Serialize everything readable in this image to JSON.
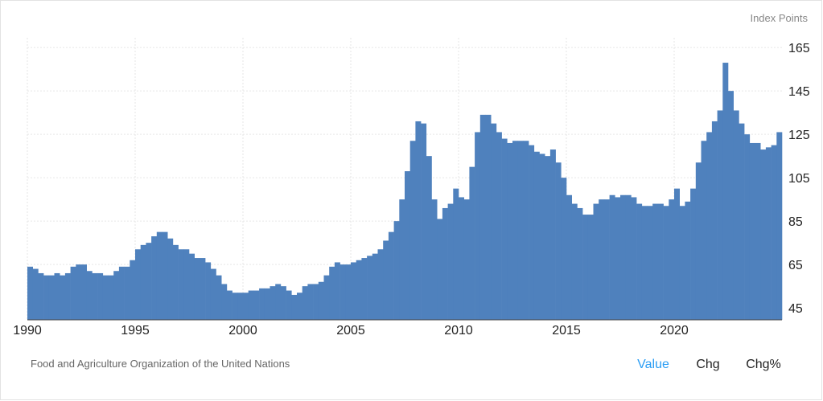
{
  "chart_data": {
    "type": "bar",
    "unit_label": "Index Points",
    "source": "Food and Agriculture Organization of the United Nations",
    "tabs": [
      "Value",
      "Chg",
      "Chg%"
    ],
    "color": "#4f81bd",
    "x": [
      1990,
      1990.25,
      1990.5,
      1990.75,
      1991,
      1991.25,
      1991.5,
      1991.75,
      1992,
      1992.25,
      1992.5,
      1992.75,
      1993,
      1993.25,
      1993.5,
      1993.75,
      1994,
      1994.25,
      1994.5,
      1994.75,
      1995,
      1995.25,
      1995.5,
      1995.75,
      1996,
      1996.25,
      1996.5,
      1996.75,
      1997,
      1997.25,
      1997.5,
      1997.75,
      1998,
      1998.25,
      1998.5,
      1998.75,
      1999,
      1999.25,
      1999.5,
      1999.75,
      2000,
      2000.25,
      2000.5,
      2000.75,
      2001,
      2001.25,
      2001.5,
      2001.75,
      2002,
      2002.25,
      2002.5,
      2002.75,
      2003,
      2003.25,
      2003.5,
      2003.75,
      2004,
      2004.25,
      2004.5,
      2004.75,
      2005,
      2005.25,
      2005.5,
      2005.75,
      2006,
      2006.25,
      2006.5,
      2006.75,
      2007,
      2007.25,
      2007.5,
      2007.75,
      2008,
      2008.25,
      2008.5,
      2008.75,
      2009,
      2009.25,
      2009.5,
      2009.75,
      2010,
      2010.25,
      2010.5,
      2010.75,
      2011,
      2011.25,
      2011.5,
      2011.75,
      2012,
      2012.25,
      2012.5,
      2012.75,
      2013,
      2013.25,
      2013.5,
      2013.75,
      2014,
      2014.25,
      2014.5,
      2014.75,
      2015,
      2015.25,
      2015.5,
      2015.75,
      2016,
      2016.25,
      2016.5,
      2016.75,
      2017,
      2017.25,
      2017.5,
      2017.75,
      2018,
      2018.25,
      2018.5,
      2018.75,
      2019,
      2019.25,
      2019.5,
      2019.75,
      2020,
      2020.25,
      2020.5,
      2020.75,
      2021,
      2021.25,
      2021.5,
      2021.75,
      2022,
      2022.25,
      2022.5,
      2022.75,
      2023,
      2023.25,
      2023.5,
      2023.75,
      2024,
      2024.25,
      2024.5,
      2024.75
    ],
    "values": [
      64,
      63,
      61,
      60,
      60,
      61,
      60,
      61,
      64,
      65,
      65,
      62,
      61,
      61,
      60,
      60,
      62,
      64,
      64,
      67,
      72,
      74,
      75,
      78,
      80,
      80,
      77,
      74,
      72,
      72,
      70,
      68,
      68,
      66,
      63,
      60,
      56,
      53,
      52,
      52,
      52,
      53,
      53,
      54,
      54,
      55,
      56,
      55,
      53,
      51,
      52,
      55,
      56,
      56,
      57,
      60,
      64,
      66,
      65,
      65,
      66,
      67,
      68,
      69,
      70,
      72,
      76,
      80,
      85,
      95,
      108,
      122,
      131,
      130,
      115,
      95,
      86,
      91,
      93,
      100,
      96,
      95,
      110,
      126,
      134,
      134,
      130,
      126,
      123,
      121,
      122,
      122,
      122,
      120,
      117,
      116,
      115,
      118,
      112,
      105,
      97,
      93,
      91,
      88,
      88,
      93,
      95,
      95,
      97,
      96,
      97,
      97,
      96,
      93,
      92,
      92,
      93,
      93,
      92,
      95,
      100,
      92,
      94,
      100,
      112,
      122,
      126,
      131,
      136,
      158,
      145,
      136,
      130,
      125,
      121,
      121,
      118,
      119,
      120,
      126
    ],
    "xlim": [
      1990,
      2025
    ],
    "xticks": [
      1990,
      1995,
      2000,
      2005,
      2010,
      2015,
      2020
    ],
    "ylim": [
      39.5,
      169.5
    ],
    "yticks": [
      45,
      65,
      85,
      105,
      125,
      145,
      165
    ],
    "grid": true
  }
}
